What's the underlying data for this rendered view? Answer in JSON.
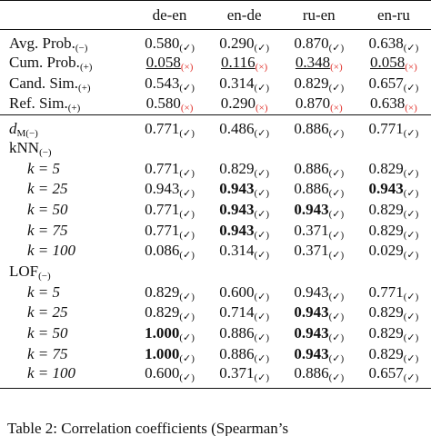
{
  "wrong_mark_color": "#e0302a",
  "table": {
    "columns": [
      "de-en",
      "en-de",
      "ru-en",
      "en-ru"
    ],
    "sections": [
      {
        "rows": [
          {
            "label": "Avg. Prob.",
            "sub": "(−)",
            "cells": [
              {
                "value": "0.580",
                "mark": "(✓)",
                "ok": true
              },
              {
                "value": "0.290",
                "mark": "(✓)",
                "ok": true
              },
              {
                "value": "0.870",
                "mark": "(✓)",
                "ok": true
              },
              {
                "value": "0.638",
                "mark": "(✓)",
                "ok": true
              }
            ]
          },
          {
            "label": "Cum. Prob.",
            "sub": "(+)",
            "cells": [
              {
                "value": "0.058",
                "mark": "(×)",
                "ok": false,
                "underline": true
              },
              {
                "value": "0.116",
                "mark": "(×)",
                "ok": false,
                "underline": true
              },
              {
                "value": "0.348",
                "mark": "(×)",
                "ok": false,
                "underline": true
              },
              {
                "value": "0.058",
                "mark": "(×)",
                "ok": false,
                "underline": true
              }
            ]
          },
          {
            "label": "Cand. Sim.",
            "sub": "(+)",
            "cells": [
              {
                "value": "0.543",
                "mark": "(✓)",
                "ok": true
              },
              {
                "value": "0.314",
                "mark": "(✓)",
                "ok": true
              },
              {
                "value": "0.829",
                "mark": "(✓)",
                "ok": true
              },
              {
                "value": "0.657",
                "mark": "(✓)",
                "ok": true
              }
            ]
          },
          {
            "label": "Ref. Sim.",
            "sub": "(+)",
            "cells": [
              {
                "value": "0.580",
                "mark": "(×)",
                "ok": false
              },
              {
                "value": "0.290",
                "mark": "(×)",
                "ok": false
              },
              {
                "value": "0.870",
                "mark": "(×)",
                "ok": false
              },
              {
                "value": "0.638",
                "mark": "(×)",
                "ok": false
              }
            ]
          }
        ]
      },
      {
        "rows": [
          {
            "label": "d",
            "sub": "M(−)",
            "italic": true,
            "cells": [
              {
                "value": "0.771",
                "mark": "(✓)",
                "ok": true
              },
              {
                "value": "0.486",
                "mark": "(✓)",
                "ok": true
              },
              {
                "value": "0.886",
                "mark": "(✓)",
                "ok": true
              },
              {
                "value": "0.771",
                "mark": "(✓)",
                "ok": true
              }
            ]
          },
          {
            "label": "kNN",
            "sub": "(−)",
            "rows": [
              {
                "label": "k = 5",
                "italic": true,
                "cells": [
                  {
                    "value": "0.771",
                    "mark": "(✓)",
                    "ok": true
                  },
                  {
                    "value": "0.829",
                    "mark": "(✓)",
                    "ok": true
                  },
                  {
                    "value": "0.886",
                    "mark": "(✓)",
                    "ok": true
                  },
                  {
                    "value": "0.829",
                    "mark": "(✓)",
                    "ok": true
                  }
                ]
              },
              {
                "label": "k = 25",
                "italic": true,
                "cells": [
                  {
                    "value": "0.943",
                    "mark": "(✓)",
                    "ok": true
                  },
                  {
                    "value": "0.943",
                    "mark": "(✓)",
                    "ok": true,
                    "bold": true
                  },
                  {
                    "value": "0.886",
                    "mark": "(✓)",
                    "ok": true
                  },
                  {
                    "value": "0.943",
                    "mark": "(✓)",
                    "ok": true,
                    "bold": true
                  }
                ]
              },
              {
                "label": "k = 50",
                "italic": true,
                "cells": [
                  {
                    "value": "0.771",
                    "mark": "(✓)",
                    "ok": true
                  },
                  {
                    "value": "0.943",
                    "mark": "(✓)",
                    "ok": true,
                    "bold": true
                  },
                  {
                    "value": "0.943",
                    "mark": "(✓)",
                    "ok": true,
                    "bold": true
                  },
                  {
                    "value": "0.829",
                    "mark": "(✓)",
                    "ok": true
                  }
                ]
              },
              {
                "label": "k = 75",
                "italic": true,
                "cells": [
                  {
                    "value": "0.771",
                    "mark": "(✓)",
                    "ok": true
                  },
                  {
                    "value": "0.943",
                    "mark": "(✓)",
                    "ok": true,
                    "bold": true
                  },
                  {
                    "value": "0.371",
                    "mark": "(✓)",
                    "ok": true
                  },
                  {
                    "value": "0.829",
                    "mark": "(✓)",
                    "ok": true
                  }
                ]
              },
              {
                "label": "k = 100",
                "italic": true,
                "cells": [
                  {
                    "value": "0.086",
                    "mark": "(✓)",
                    "ok": true
                  },
                  {
                    "value": "0.314",
                    "mark": "(✓)",
                    "ok": true
                  },
                  {
                    "value": "0.371",
                    "mark": "(✓)",
                    "ok": true
                  },
                  {
                    "value": "0.029",
                    "mark": "(✓)",
                    "ok": true
                  }
                ]
              }
            ]
          },
          {
            "label": "LOF",
            "sub": "(−)",
            "rows": [
              {
                "label": "k = 5",
                "italic": true,
                "cells": [
                  {
                    "value": "0.829",
                    "mark": "(✓)",
                    "ok": true
                  },
                  {
                    "value": "0.600",
                    "mark": "(✓)",
                    "ok": true
                  },
                  {
                    "value": "0.943",
                    "mark": "(✓)",
                    "ok": true
                  },
                  {
                    "value": "0.771",
                    "mark": "(✓)",
                    "ok": true
                  }
                ]
              },
              {
                "label": "k = 25",
                "italic": true,
                "cells": [
                  {
                    "value": "0.829",
                    "mark": "(✓)",
                    "ok": true
                  },
                  {
                    "value": "0.714",
                    "mark": "(✓)",
                    "ok": true
                  },
                  {
                    "value": "0.943",
                    "mark": "(✓)",
                    "ok": true,
                    "bold": true
                  },
                  {
                    "value": "0.829",
                    "mark": "(✓)",
                    "ok": true
                  }
                ]
              },
              {
                "label": "k = 50",
                "italic": true,
                "cells": [
                  {
                    "value": "1.000",
                    "mark": "(✓)",
                    "ok": true,
                    "bold": true
                  },
                  {
                    "value": "0.886",
                    "mark": "(✓)",
                    "ok": true
                  },
                  {
                    "value": "0.943",
                    "mark": "(✓)",
                    "ok": true,
                    "bold": true
                  },
                  {
                    "value": "0.829",
                    "mark": "(✓)",
                    "ok": true
                  }
                ]
              },
              {
                "label": "k = 75",
                "italic": true,
                "cells": [
                  {
                    "value": "1.000",
                    "mark": "(✓)",
                    "ok": true,
                    "bold": true
                  },
                  {
                    "value": "0.886",
                    "mark": "(✓)",
                    "ok": true
                  },
                  {
                    "value": "0.943",
                    "mark": "(✓)",
                    "ok": true,
                    "bold": true
                  },
                  {
                    "value": "0.829",
                    "mark": "(✓)",
                    "ok": true
                  }
                ]
              },
              {
                "label": "k = 100",
                "italic": true,
                "cells": [
                  {
                    "value": "0.600",
                    "mark": "(✓)",
                    "ok": true
                  },
                  {
                    "value": "0.371",
                    "mark": "(✓)",
                    "ok": true
                  },
                  {
                    "value": "0.886",
                    "mark": "(✓)",
                    "ok": true
                  },
                  {
                    "value": "0.657",
                    "mark": "(✓)",
                    "ok": true
                  }
                ]
              }
            ]
          }
        ]
      }
    ]
  },
  "caption": "Table 2: Correlation coefficients (Spearman’s"
}
